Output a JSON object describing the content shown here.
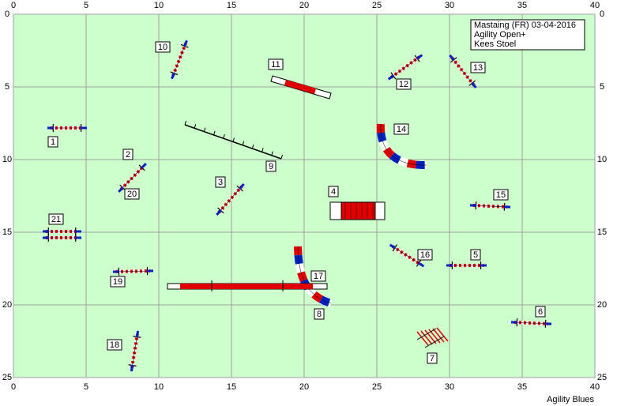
{
  "x_axis": {
    "ticks": [
      0,
      5,
      10,
      15,
      20,
      25,
      30,
      35,
      40
    ]
  },
  "y_axis": {
    "ticks": [
      0,
      5,
      10,
      15,
      20,
      25
    ]
  },
  "info_box": {
    "lines": [
      "Mastaing (FR) 03-04-2016",
      "Agility  Open+",
      "Kees Stoel"
    ]
  },
  "obstacles": [
    {
      "number": "1"
    },
    {
      "number": "2"
    },
    {
      "number": "3"
    },
    {
      "number": "4"
    },
    {
      "number": "5"
    },
    {
      "number": "6"
    },
    {
      "number": "7"
    },
    {
      "number": "8"
    },
    {
      "number": "9"
    },
    {
      "number": "10"
    },
    {
      "number": "11"
    },
    {
      "number": "12"
    },
    {
      "number": "13"
    },
    {
      "number": "14"
    },
    {
      "number": "15"
    },
    {
      "number": "16"
    },
    {
      "number": "17"
    },
    {
      "number": "18"
    },
    {
      "number": "19"
    },
    {
      "number": "20"
    },
    {
      "number": "21"
    }
  ],
  "footer": "Agility Blues"
}
